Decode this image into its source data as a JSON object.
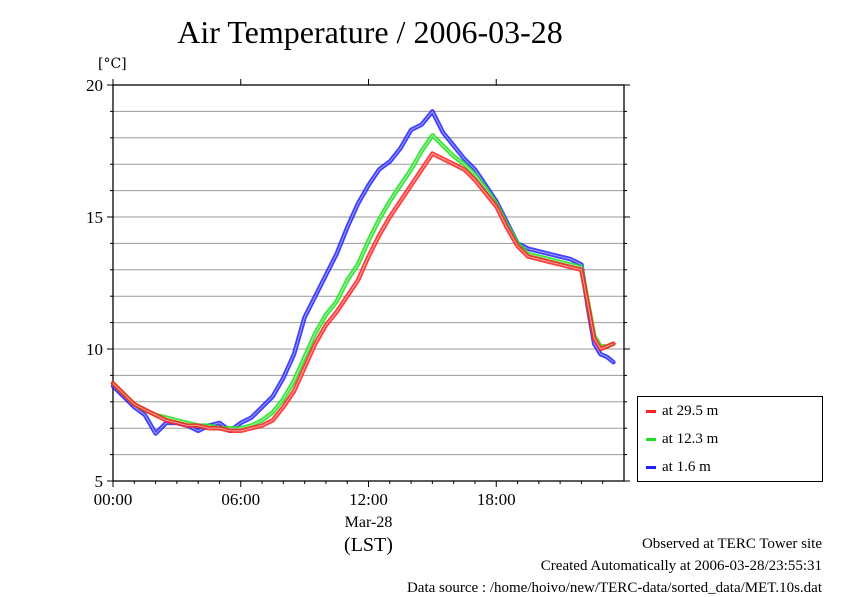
{
  "title": "Air Temperature / 2006-03-28",
  "unit_label": "[°C]",
  "chart_data": {
    "type": "line",
    "xlabel": "(LST)",
    "x_tick_labels": [
      "00:00",
      "06:00",
      "12:00",
      "18:00"
    ],
    "x_date_label": "Mar-28",
    "xlim_hours": [
      0,
      24
    ],
    "ylim": [
      5,
      20
    ],
    "y_ticks": [
      5,
      10,
      15,
      20
    ],
    "grid": true,
    "legend_position": "bottom-right",
    "series": [
      {
        "name": "at 29.5 m",
        "color": "#ff2020",
        "x_hours": [
          0,
          0.5,
          1,
          1.5,
          2,
          2.5,
          3,
          3.5,
          4,
          4.5,
          5,
          5.5,
          6,
          6.5,
          7,
          7.5,
          8,
          8.5,
          9,
          9.5,
          10,
          10.5,
          11,
          11.5,
          12,
          12.5,
          13,
          13.5,
          14,
          14.5,
          15,
          15.5,
          16,
          16.5,
          17,
          17.5,
          18,
          18.5,
          19,
          19.5,
          20,
          20.5,
          21,
          21.5,
          22,
          22.3,
          22.6,
          22.9,
          23.2,
          23.5
        ],
        "values": [
          8.7,
          8.3,
          7.9,
          7.7,
          7.5,
          7.3,
          7.2,
          7.1,
          7.1,
          7.0,
          7.0,
          6.9,
          6.9,
          7.0,
          7.1,
          7.3,
          7.8,
          8.4,
          9.3,
          10.2,
          10.9,
          11.4,
          12.0,
          12.6,
          13.5,
          14.3,
          15.0,
          15.6,
          16.2,
          16.8,
          17.4,
          17.2,
          17.0,
          16.8,
          16.4,
          15.9,
          15.4,
          14.6,
          13.9,
          13.5,
          13.4,
          13.3,
          13.2,
          13.1,
          13.0,
          11.7,
          10.4,
          10.0,
          10.1,
          10.2
        ]
      },
      {
        "name": "at 12.3 m",
        "color": "#20e020",
        "x_hours": [
          0,
          0.5,
          1,
          1.5,
          2,
          2.5,
          3,
          3.5,
          4,
          4.5,
          5,
          5.5,
          6,
          6.5,
          7,
          7.5,
          8,
          8.5,
          9,
          9.5,
          10,
          10.5,
          11,
          11.5,
          12,
          12.5,
          13,
          13.5,
          14,
          14.5,
          15,
          15.5,
          16,
          16.5,
          17,
          17.5,
          18,
          18.5,
          19,
          19.5,
          20,
          20.5,
          21,
          21.5,
          22,
          22.3,
          22.6,
          22.9,
          23.2,
          23.5
        ],
        "values": [
          8.7,
          8.3,
          7.9,
          7.7,
          7.5,
          7.4,
          7.3,
          7.2,
          7.1,
          7.1,
          7.0,
          7.0,
          7.0,
          7.1,
          7.3,
          7.6,
          8.1,
          8.8,
          9.7,
          10.6,
          11.3,
          11.8,
          12.6,
          13.2,
          14.1,
          14.9,
          15.6,
          16.2,
          16.8,
          17.5,
          18.1,
          17.7,
          17.3,
          17.0,
          16.6,
          16.1,
          15.5,
          14.7,
          14.0,
          13.6,
          13.5,
          13.4,
          13.3,
          13.2,
          13.1,
          11.8,
          10.5,
          10.1,
          10.1,
          10.2
        ]
      },
      {
        "name": "at 1.6 m",
        "color": "#2020ff",
        "x_hours": [
          0,
          0.5,
          1,
          1.5,
          2,
          2.5,
          3,
          3.5,
          4,
          4.5,
          5,
          5.5,
          6,
          6.5,
          7,
          7.5,
          8,
          8.5,
          9,
          9.5,
          10,
          10.5,
          11,
          11.5,
          12,
          12.5,
          13,
          13.5,
          14,
          14.5,
          15,
          15.5,
          16,
          16.5,
          17,
          17.5,
          18,
          18.5,
          19,
          19.5,
          20,
          20.5,
          21,
          21.5,
          22,
          22.3,
          22.6,
          22.9,
          23.2,
          23.5
        ],
        "values": [
          8.6,
          8.2,
          7.8,
          7.5,
          6.8,
          7.2,
          7.2,
          7.1,
          6.9,
          7.1,
          7.2,
          6.9,
          7.2,
          7.4,
          7.8,
          8.2,
          8.9,
          9.8,
          11.2,
          12.0,
          12.8,
          13.6,
          14.6,
          15.5,
          16.2,
          16.8,
          17.1,
          17.6,
          18.3,
          18.5,
          19.0,
          18.2,
          17.7,
          17.2,
          16.8,
          16.2,
          15.6,
          14.8,
          14.0,
          13.8,
          13.7,
          13.6,
          13.5,
          13.4,
          13.2,
          11.6,
          10.2,
          9.8,
          9.7,
          9.5
        ]
      }
    ]
  },
  "footer": {
    "line1": "Observed at TERC Tower site",
    "line2": "Created Automatically at 2006-03-28/23:55:31",
    "line3": "Data source : /home/hoivo/new/TERC-data/sorted_data/MET.10s.dat"
  }
}
